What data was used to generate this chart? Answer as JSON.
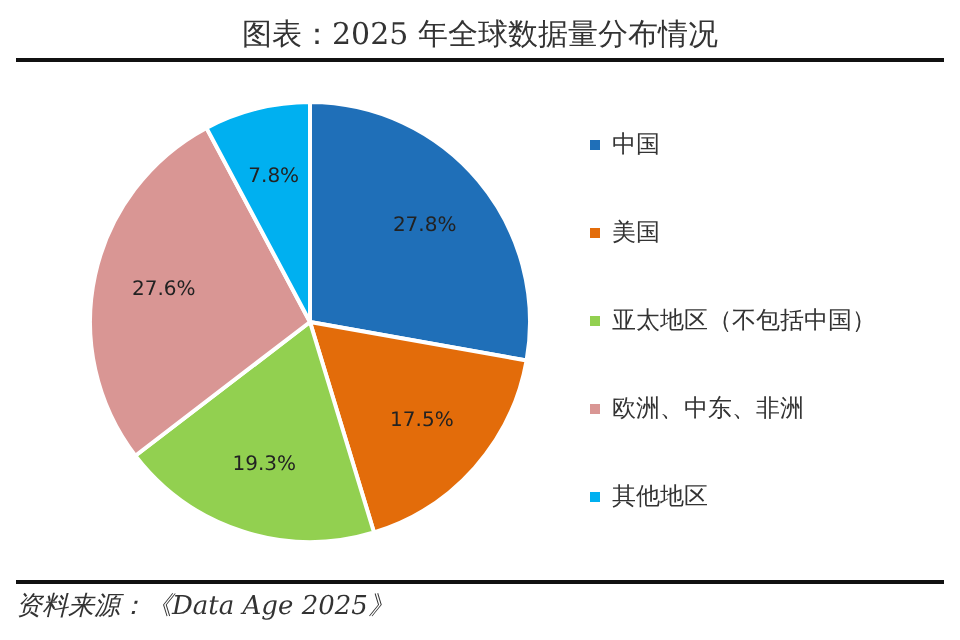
{
  "chart_data": {
    "type": "pie",
    "title": "图表：2025 年全球数据量分布情况",
    "categories": [
      "中国",
      "美国",
      "亚太地区（不包括中国）",
      "欧洲、中东、非洲",
      "其他地区"
    ],
    "values": [
      27.8,
      17.5,
      19.3,
      27.6,
      7.8
    ],
    "colors": [
      "#1f6fb8",
      "#e36c0a",
      "#92d050",
      "#d99694",
      "#00b0f0"
    ],
    "value_labels": [
      "27.8%",
      "17.5%",
      "19.3%",
      "27.6%",
      "7.8%"
    ],
    "legend": "right",
    "annotations": [
      "资料来源：《Data Age 2025》"
    ]
  }
}
